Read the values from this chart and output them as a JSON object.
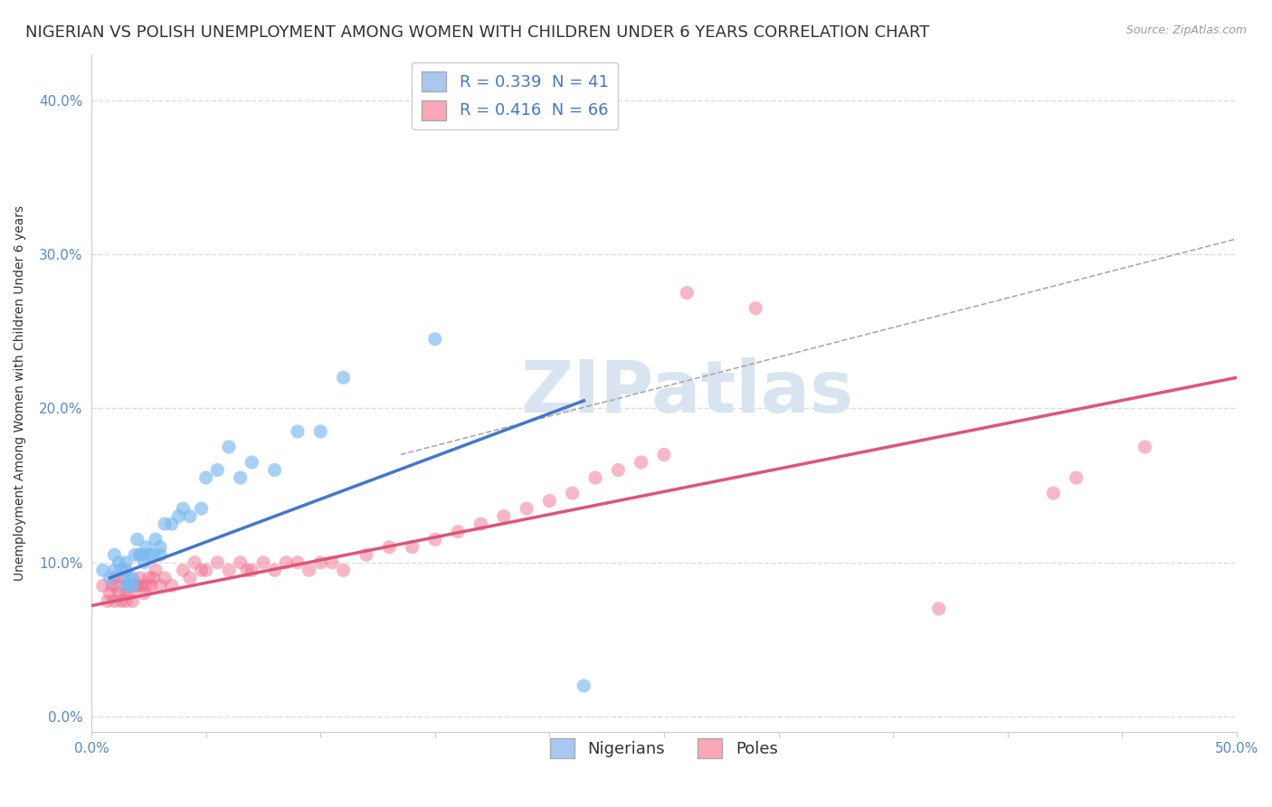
{
  "title": "NIGERIAN VS POLISH UNEMPLOYMENT AMONG WOMEN WITH CHILDREN UNDER 6 YEARS CORRELATION CHART",
  "source": "Source: ZipAtlas.com",
  "ylabel": "Unemployment Among Women with Children Under 6 years",
  "ytick_labels": [
    "0.0%",
    "10.0%",
    "20.0%",
    "30.0%",
    "40.0%"
  ],
  "ytick_values": [
    0.0,
    0.1,
    0.2,
    0.3,
    0.4
  ],
  "xlim": [
    0.0,
    0.5
  ],
  "ylim": [
    -0.01,
    0.43
  ],
  "legend_entries": [
    {
      "label": "R = 0.339  N = 41",
      "color": "#a8c8f0"
    },
    {
      "label": "R = 0.416  N = 66",
      "color": "#f8a8b8"
    }
  ],
  "nigerian_scatter": {
    "color": "#7ab8f0",
    "alpha": 0.65,
    "size": 120,
    "x": [
      0.005,
      0.008,
      0.01,
      0.01,
      0.012,
      0.013,
      0.015,
      0.015,
      0.015,
      0.016,
      0.017,
      0.018,
      0.018,
      0.019,
      0.02,
      0.021,
      0.022,
      0.023,
      0.024,
      0.025,
      0.027,
      0.028,
      0.03,
      0.03,
      0.032,
      0.035,
      0.038,
      0.04,
      0.043,
      0.048,
      0.05,
      0.055,
      0.06,
      0.065,
      0.07,
      0.08,
      0.09,
      0.1,
      0.11,
      0.15,
      0.215
    ],
    "y": [
      0.095,
      0.09,
      0.105,
      0.095,
      0.1,
      0.095,
      0.1,
      0.095,
      0.085,
      0.09,
      0.085,
      0.09,
      0.085,
      0.105,
      0.115,
      0.105,
      0.105,
      0.1,
      0.11,
      0.105,
      0.105,
      0.115,
      0.11,
      0.105,
      0.125,
      0.125,
      0.13,
      0.135,
      0.13,
      0.135,
      0.155,
      0.16,
      0.175,
      0.155,
      0.165,
      0.16,
      0.185,
      0.185,
      0.22,
      0.245,
      0.02
    ]
  },
  "polish_scatter": {
    "color": "#f07090",
    "alpha": 0.5,
    "size": 120,
    "x": [
      0.005,
      0.007,
      0.008,
      0.009,
      0.01,
      0.01,
      0.011,
      0.012,
      0.013,
      0.014,
      0.015,
      0.015,
      0.016,
      0.017,
      0.018,
      0.019,
      0.02,
      0.021,
      0.022,
      0.023,
      0.024,
      0.025,
      0.026,
      0.027,
      0.028,
      0.03,
      0.032,
      0.035,
      0.04,
      0.043,
      0.045,
      0.048,
      0.05,
      0.055,
      0.06,
      0.065,
      0.068,
      0.07,
      0.075,
      0.08,
      0.085,
      0.09,
      0.095,
      0.1,
      0.105,
      0.11,
      0.12,
      0.13,
      0.14,
      0.15,
      0.16,
      0.17,
      0.18,
      0.19,
      0.2,
      0.21,
      0.22,
      0.23,
      0.24,
      0.25,
      0.26,
      0.29,
      0.37,
      0.42,
      0.43,
      0.46
    ],
    "y": [
      0.085,
      0.075,
      0.08,
      0.085,
      0.075,
      0.09,
      0.085,
      0.08,
      0.075,
      0.09,
      0.08,
      0.075,
      0.085,
      0.08,
      0.075,
      0.085,
      0.085,
      0.09,
      0.085,
      0.08,
      0.085,
      0.09,
      0.085,
      0.09,
      0.095,
      0.085,
      0.09,
      0.085,
      0.095,
      0.09,
      0.1,
      0.095,
      0.095,
      0.1,
      0.095,
      0.1,
      0.095,
      0.095,
      0.1,
      0.095,
      0.1,
      0.1,
      0.095,
      0.1,
      0.1,
      0.095,
      0.105,
      0.11,
      0.11,
      0.115,
      0.12,
      0.125,
      0.13,
      0.135,
      0.14,
      0.145,
      0.155,
      0.16,
      0.165,
      0.17,
      0.275,
      0.265,
      0.07,
      0.145,
      0.155,
      0.175
    ]
  },
  "nigerian_line": {
    "x_start": 0.008,
    "y_start": 0.09,
    "x_end": 0.215,
    "y_end": 0.205,
    "color": "#4477cc",
    "linewidth": 2.5
  },
  "polish_line": {
    "x_start": 0.0,
    "y_start": 0.072,
    "x_end": 0.5,
    "y_end": 0.22,
    "color": "#dd5577",
    "linewidth": 2.5
  },
  "diagonal_line": {
    "x_start": 0.135,
    "y_start": 0.17,
    "x_end": 0.5,
    "y_end": 0.31,
    "color": "#aaaaaa",
    "linewidth": 1.2,
    "linestyle": "--"
  },
  "watermark_text": "ZIPatlas",
  "watermark_color": "#d8e4f0",
  "background_color": "#ffffff",
  "grid_color": "#dddddd",
  "title_fontsize": 13,
  "axis_label_fontsize": 10,
  "tick_fontsize": 11,
  "legend_fontsize": 13
}
